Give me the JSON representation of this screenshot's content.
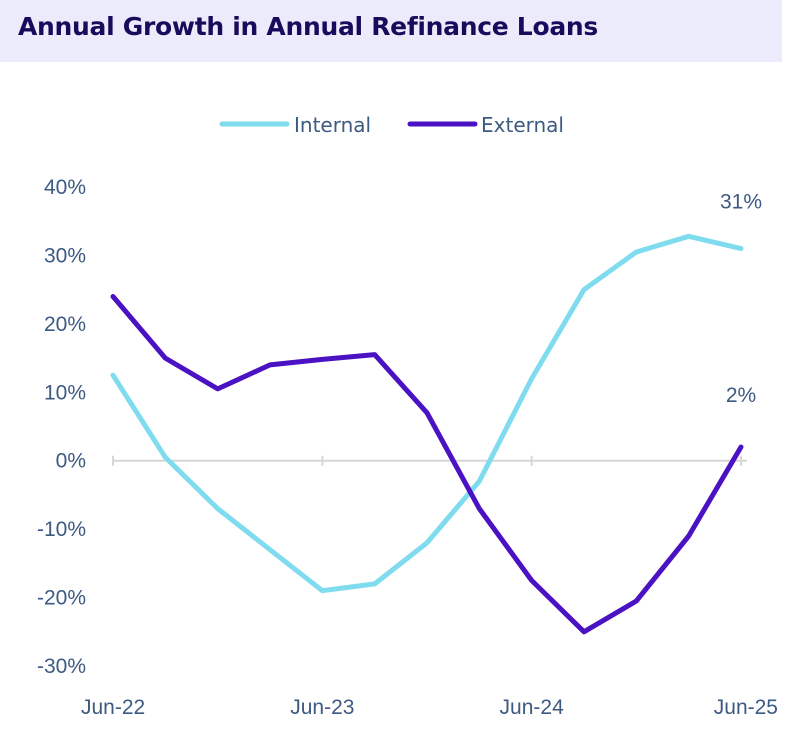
{
  "chart_data": {
    "type": "line",
    "title": "Annual Growth in Annual Refinance Loans",
    "xlabel": "",
    "ylabel": "",
    "x": [
      "Jun-22",
      "Sep-22",
      "Dec-22",
      "Mar-23",
      "Jun-23",
      "Sep-23",
      "Dec-23",
      "Mar-24",
      "Jun-24",
      "Sep-24",
      "Dec-24",
      "Mar-25",
      "Jun-25"
    ],
    "x_tick_labels": [
      "Jun-22",
      "Jun-23",
      "Jun-24",
      "Jun-25"
    ],
    "y_tick_labels": [
      "40%",
      "30%",
      "20%",
      "10%",
      "0%",
      "-10%",
      "-20%",
      "-30%"
    ],
    "ylim": [
      -30,
      40
    ],
    "series": [
      {
        "name": "Internal",
        "color": "#7fdcef",
        "values": [
          12.5,
          0.5,
          -7,
          -13,
          -19,
          -18,
          -12,
          -3,
          12,
          25,
          30.5,
          32.8,
          31
        ]
      },
      {
        "name": "External",
        "color": "#4b12c4",
        "values": [
          24,
          15,
          10.5,
          14,
          14.8,
          15.5,
          7,
          -7,
          -17.5,
          -25,
          -20.5,
          -11,
          2
        ]
      }
    ],
    "end_labels": [
      {
        "series": "Internal",
        "text": "31%"
      },
      {
        "series": "External",
        "text": "2%"
      }
    ],
    "legend_position": "top-center",
    "grid": false
  }
}
